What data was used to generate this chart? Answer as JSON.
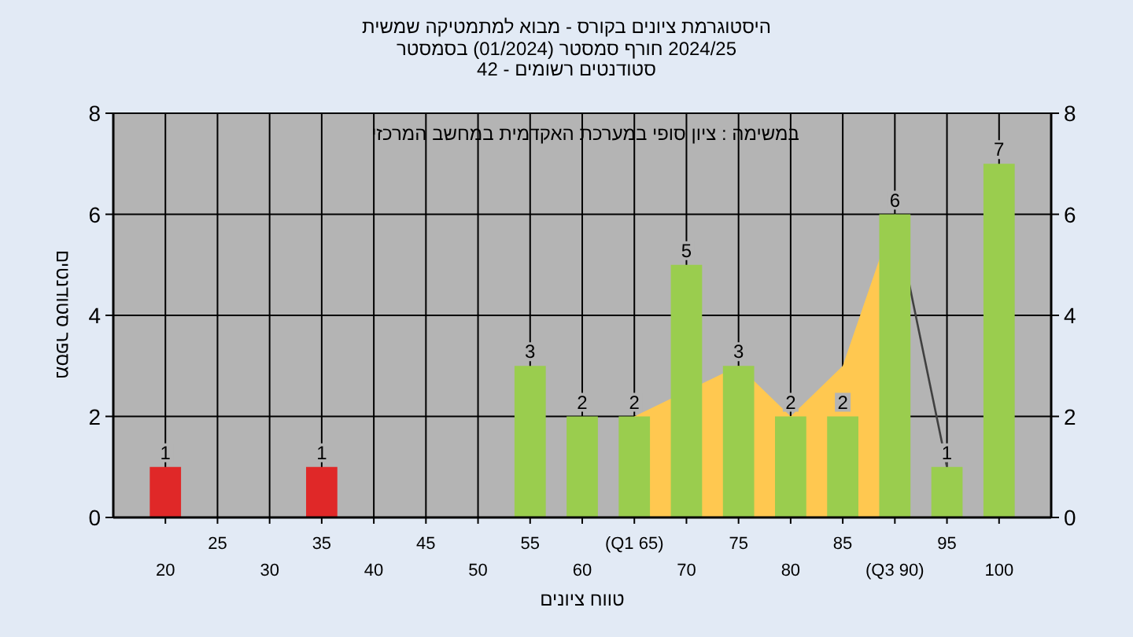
{
  "chart_data": {
    "type": "bar",
    "title": "היסטוגרמת ציונים בקורס - מבוא למתמטיקה שמשית",
    "subtitle": "2024/25 חורף סמסטר (01/2024) בסמסטר",
    "annotations": [
      "סטודנטים רשומים - 42",
      "במשימה : ציון סופי במערכת האקדמית במחשב המרכזי"
    ],
    "xlabel": "טווח ציונים",
    "ylabel": "מספר סטודנטים",
    "categories": [
      "20",
      "25",
      "30",
      "35",
      "40",
      "45",
      "50",
      "55",
      "60",
      "(Q1 65)",
      "70",
      "75",
      "80",
      "85",
      "(Q3 90)",
      "95",
      "100"
    ],
    "series": [
      {
        "type": "area",
        "color": "#ffc850",
        "values": [
          null,
          null,
          null,
          null,
          null,
          null,
          null,
          null,
          null,
          2,
          null,
          3,
          2,
          3,
          6,
          null,
          null
        ]
      },
      {
        "type": "line",
        "color": "#404040",
        "values": [
          null,
          null,
          null,
          null,
          null,
          null,
          null,
          null,
          null,
          null,
          null,
          null,
          null,
          null,
          6,
          1,
          null
        ]
      },
      {
        "values": [
          1,
          0,
          0,
          1,
          0,
          0,
          0,
          3,
          2,
          2,
          5,
          3,
          2,
          2,
          6,
          1,
          7
        ],
        "colors": [
          "#e02828",
          "#e02828",
          "#e02828",
          "#e02828",
          "#e02828",
          "#e02828",
          "#e02828",
          "#9acd4e",
          "#9acd4e",
          "#9acd4e",
          "#9acd4e",
          "#9acd4e",
          "#9acd4e",
          "#9acd4e",
          "#9acd4e",
          "#9acd4e",
          "#9acd4e"
        ],
        "value_labels": [
          "1",
          null,
          null,
          "1",
          null,
          null,
          null,
          "3",
          "2",
          "2",
          "5",
          "3",
          "2",
          "2",
          "6",
          "1",
          "7"
        ]
      }
    ],
    "ylim": [
      0,
      8
    ],
    "yticks": [
      0,
      2,
      4,
      6,
      8
    ],
    "y2lim": [
      0,
      8
    ],
    "y2ticks": [
      0,
      2,
      4,
      6,
      8
    ],
    "grid": true
  }
}
